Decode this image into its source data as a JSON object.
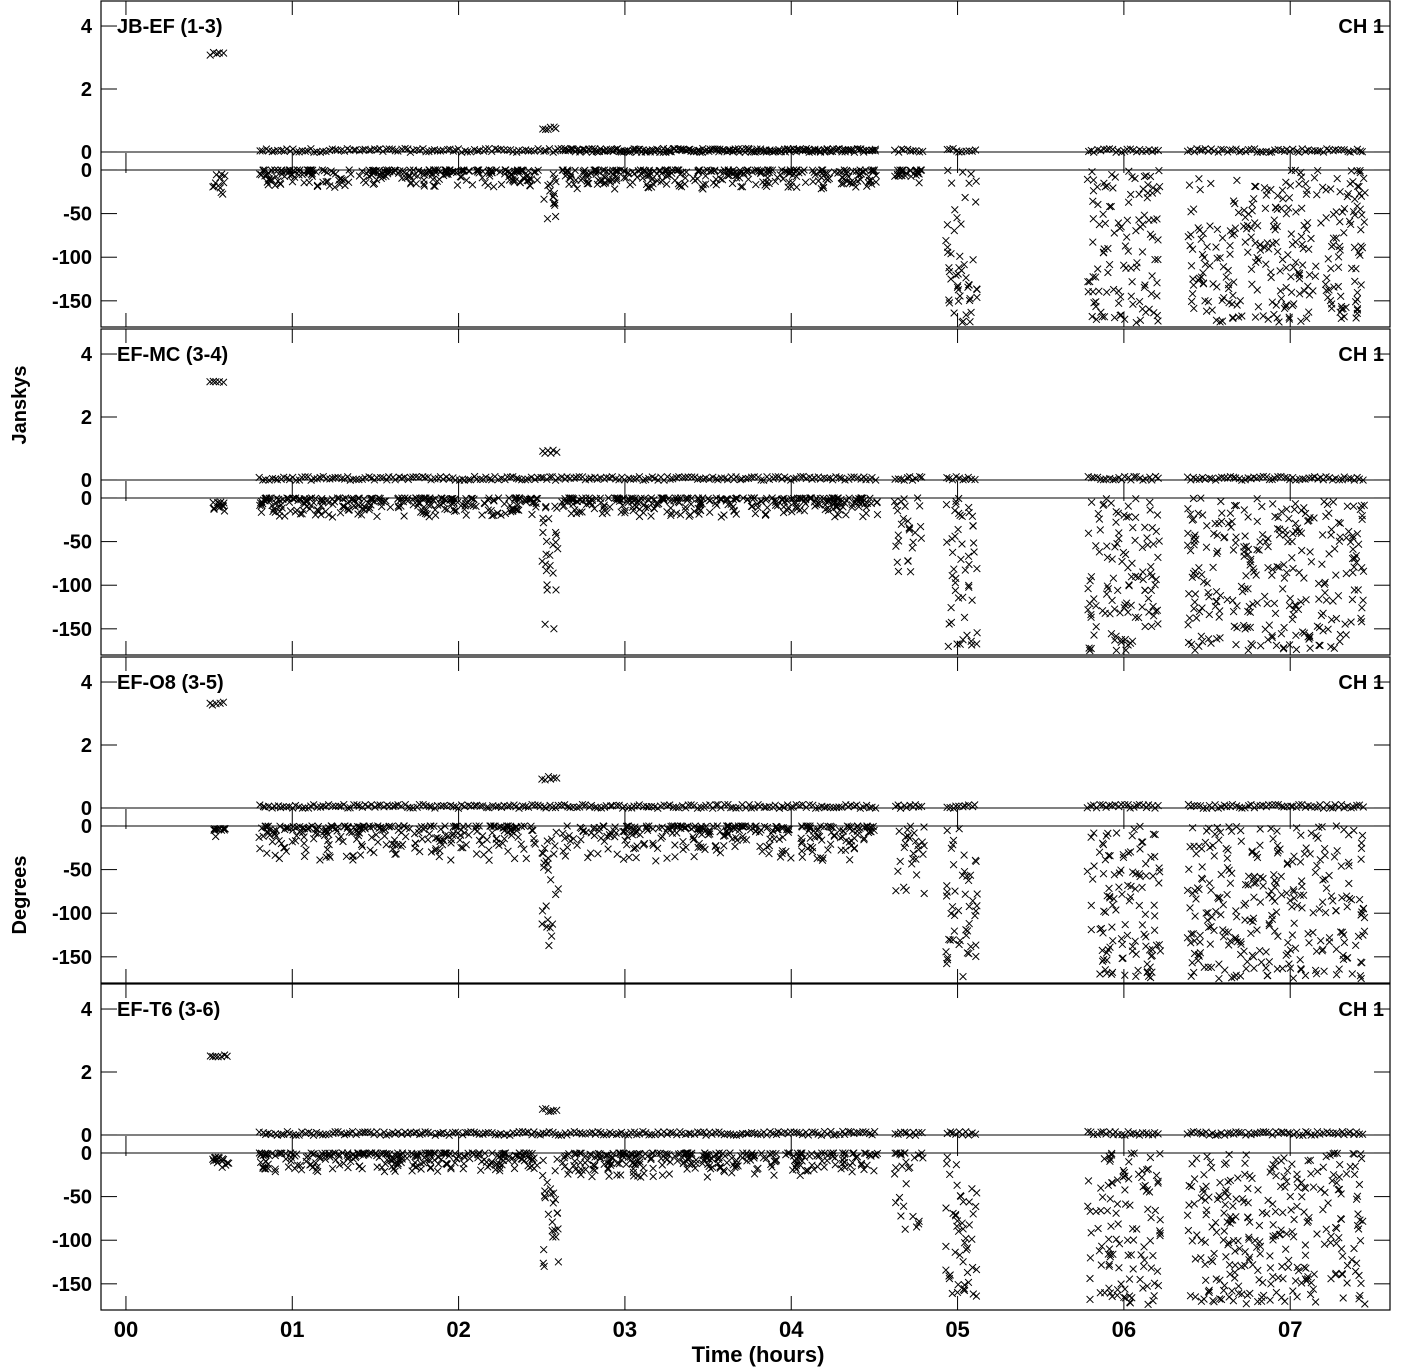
{
  "chart_data": {
    "type": "scatter",
    "x_axis": {
      "label": "Time (hours)",
      "range_hours": [
        -0.15,
        7.6
      ],
      "ticks": [
        0,
        1,
        2,
        3,
        4,
        5,
        6,
        7
      ],
      "tick_labels": [
        "00",
        "01",
        "02",
        "03",
        "04",
        "05",
        "06",
        "07"
      ]
    },
    "y_labels": {
      "amplitude": "Janskys",
      "phase": "Degrees"
    },
    "y_axes": {
      "amplitude": {
        "range": [
          -0.35,
          4.35
        ],
        "ticks": [
          0,
          2,
          4
        ],
        "tick_labels": [
          "0",
          "2",
          "4"
        ]
      },
      "phase": {
        "range": [
          -180,
          8
        ],
        "ticks": [
          0,
          -50,
          -100,
          -150
        ],
        "tick_labels": [
          "0",
          "-50",
          "-100",
          "-150"
        ]
      }
    },
    "marker": "x",
    "panels": [
      {
        "baseline": "JB-EF (1-3)",
        "channel": "CH 1",
        "amplitude_segments": [
          {
            "t": [
              0.5,
              0.6
            ],
            "value": 3.1
          },
          {
            "t": [
              2.5,
              2.6
            ],
            "value": 0.75
          },
          {
            "t": [
              0.8,
              4.52
            ],
            "value": 0.05
          },
          {
            "t": [
              2.62,
              4.52
            ],
            "value": 0.05
          },
          {
            "t": [
              4.62,
              4.8
            ],
            "value": 0.05
          },
          {
            "t": [
              4.93,
              5.12
            ],
            "value": 0.05
          },
          {
            "t": [
              5.78,
              6.22
            ],
            "value": 0.05
          },
          {
            "t": [
              6.38,
              7.45
            ],
            "value": 0.05
          }
        ],
        "phase_segments": [
          {
            "t": [
              0.52,
              0.6
            ],
            "min": -30,
            "max": -5
          },
          {
            "t": [
              0.8,
              2.48
            ],
            "min": -20,
            "max": 0
          },
          {
            "t": [
              2.5,
              2.6
            ],
            "min": -68,
            "max": -5
          },
          {
            "t": [
              2.62,
              4.52
            ],
            "min": -22,
            "max": 0
          },
          {
            "t": [
              4.62,
              4.8
            ],
            "min": -20,
            "max": 0
          },
          {
            "t": [
              4.93,
              5.12
            ],
            "min": -175,
            "max": 0
          },
          {
            "t": [
              5.78,
              6.22
            ],
            "min": -175,
            "max": 0
          },
          {
            "t": [
              6.38,
              7.45
            ],
            "min": -175,
            "max": 0
          }
        ]
      },
      {
        "baseline": "EF-MC (3-4)",
        "channel": "CH 1",
        "amplitude_segments": [
          {
            "t": [
              0.5,
              0.6
            ],
            "value": 3.1
          },
          {
            "t": [
              2.5,
              2.6
            ],
            "value": 0.9
          },
          {
            "t": [
              0.8,
              4.52
            ],
            "value": 0.05
          },
          {
            "t": [
              4.62,
              4.8
            ],
            "value": 0.05
          },
          {
            "t": [
              4.93,
              5.12
            ],
            "value": 0.05
          },
          {
            "t": [
              5.78,
              6.22
            ],
            "value": 0.05
          },
          {
            "t": [
              6.38,
              7.45
            ],
            "value": 0.05
          }
        ],
        "phase_segments": [
          {
            "t": [
              0.52,
              0.6
            ],
            "min": -15,
            "max": -5
          },
          {
            "t": [
              0.8,
              2.48
            ],
            "min": -22,
            "max": 0
          },
          {
            "t": [
              2.5,
              2.6
            ],
            "min": -150,
            "max": -5
          },
          {
            "t": [
              2.62,
              4.52
            ],
            "min": -22,
            "max": 0
          },
          {
            "t": [
              4.62,
              4.8
            ],
            "min": -85,
            "max": 0
          },
          {
            "t": [
              4.93,
              5.12
            ],
            "min": -175,
            "max": 0
          },
          {
            "t": [
              5.78,
              6.22
            ],
            "min": -175,
            "max": 0
          },
          {
            "t": [
              6.38,
              7.45
            ],
            "min": -175,
            "max": 0
          }
        ]
      },
      {
        "baseline": "EF-O8 (3-5)",
        "channel": "CH 1",
        "amplitude_segments": [
          {
            "t": [
              0.5,
              0.6
            ],
            "value": 3.3
          },
          {
            "t": [
              2.5,
              2.6
            ],
            "value": 0.95
          },
          {
            "t": [
              0.8,
              4.52
            ],
            "value": 0.05
          },
          {
            "t": [
              4.62,
              4.8
            ],
            "value": 0.05
          },
          {
            "t": [
              4.93,
              5.12
            ],
            "value": 0.05
          },
          {
            "t": [
              5.78,
              6.22
            ],
            "value": 0.05
          },
          {
            "t": [
              6.38,
              7.45
            ],
            "value": 0.05
          }
        ],
        "phase_segments": [
          {
            "t": [
              0.52,
              0.6
            ],
            "min": -22,
            "max": -3
          },
          {
            "t": [
              0.8,
              2.48
            ],
            "min": -40,
            "max": 0
          },
          {
            "t": [
              2.5,
              2.6
            ],
            "min": -140,
            "max": -5
          },
          {
            "t": [
              2.62,
              4.52
            ],
            "min": -40,
            "max": 0
          },
          {
            "t": [
              4.62,
              4.8
            ],
            "min": -80,
            "max": 0
          },
          {
            "t": [
              4.93,
              5.12
            ],
            "min": -175,
            "max": 0
          },
          {
            "t": [
              5.78,
              6.22
            ],
            "min": -175,
            "max": 0
          },
          {
            "t": [
              6.38,
              7.45
            ],
            "min": -175,
            "max": 0
          }
        ]
      },
      {
        "baseline": "EF-T6 (3-6)",
        "channel": "CH 1",
        "amplitude_segments": [
          {
            "t": [
              0.5,
              0.62
            ],
            "value": 2.5
          },
          {
            "t": [
              2.5,
              2.6
            ],
            "value": 0.8
          },
          {
            "t": [
              0.8,
              4.52
            ],
            "value": 0.05
          },
          {
            "t": [
              4.62,
              4.8
            ],
            "value": 0.05
          },
          {
            "t": [
              4.93,
              5.12
            ],
            "value": 0.05
          },
          {
            "t": [
              5.78,
              6.22
            ],
            "value": 0.05
          },
          {
            "t": [
              6.38,
              7.45
            ],
            "value": 0.05
          }
        ],
        "phase_segments": [
          {
            "t": [
              0.52,
              0.62
            ],
            "min": -22,
            "max": -5
          },
          {
            "t": [
              0.8,
              2.48
            ],
            "min": -22,
            "max": 0
          },
          {
            "t": [
              2.5,
              2.6
            ],
            "min": -145,
            "max": -5
          },
          {
            "t": [
              2.62,
              4.52
            ],
            "min": -28,
            "max": 0
          },
          {
            "t": [
              4.62,
              4.8
            ],
            "min": -95,
            "max": 0
          },
          {
            "t": [
              4.93,
              5.12
            ],
            "min": -175,
            "max": 0
          },
          {
            "t": [
              5.78,
              6.22
            ],
            "min": -175,
            "max": 0
          },
          {
            "t": [
              6.38,
              7.45
            ],
            "min": -175,
            "max": 0
          }
        ]
      }
    ]
  }
}
